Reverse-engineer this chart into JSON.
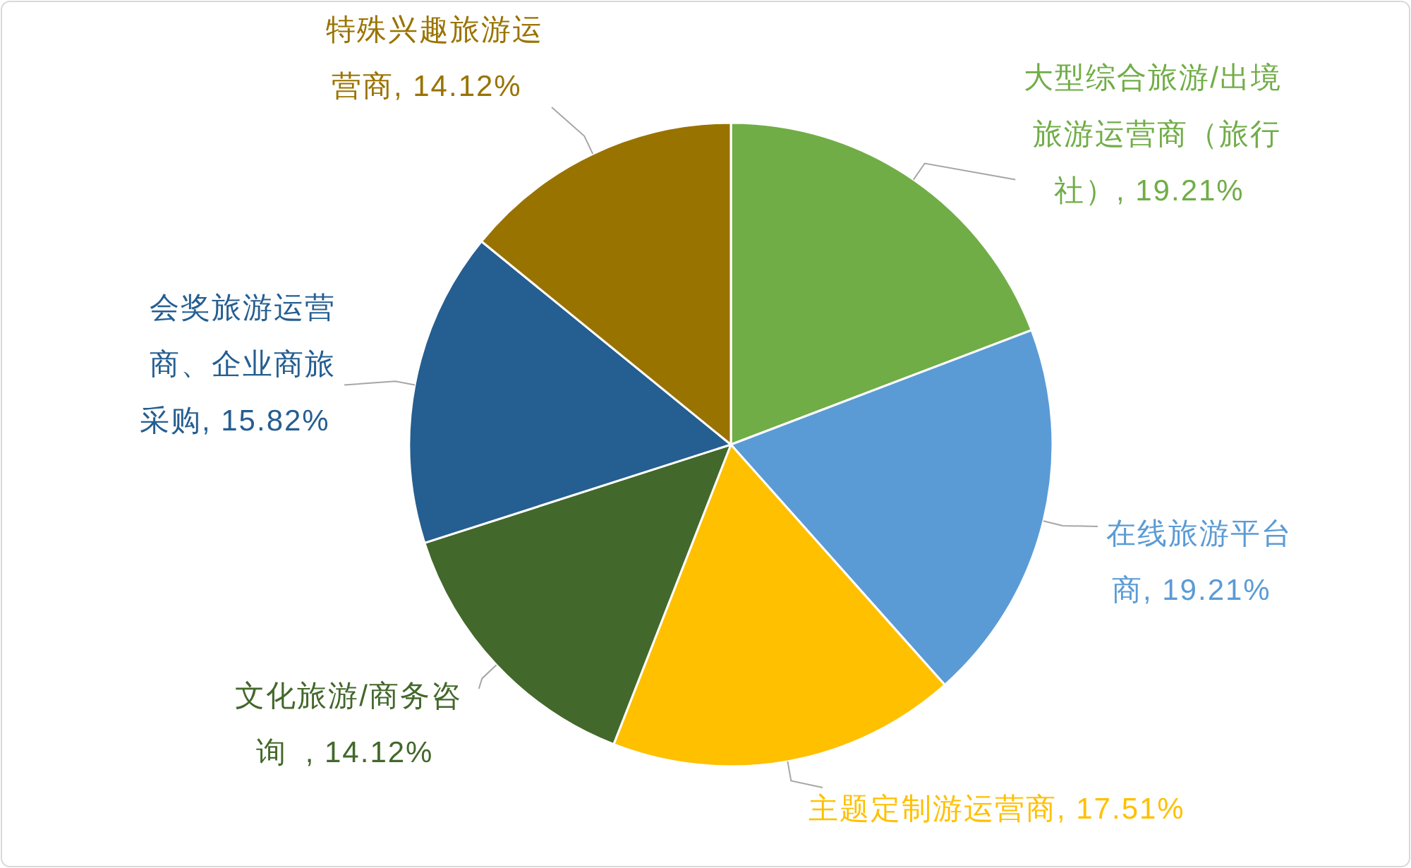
{
  "chart_data": {
    "type": "pie",
    "categories": [
      "大型综合旅游/出境旅游运营商（旅行社）",
      "在线旅游平台商",
      "主题定制游运营商",
      "文化旅游/商务咨询 ",
      "会奖旅游运营商、企业商旅采购",
      "特殊兴趣旅游运营商"
    ],
    "values": [
      19.21,
      19.21,
      17.51,
      14.12,
      15.82,
      14.12
    ],
    "value_labels": [
      ", 19.21%",
      ", 19.21%",
      ", 17.51%",
      ", 14.12%",
      ", 15.82%",
      ", 14.12%"
    ],
    "colors": [
      "#70ad47",
      "#5b9bd5",
      "#ffc000",
      "#43682b",
      "#255e91",
      "#997300"
    ]
  }
}
